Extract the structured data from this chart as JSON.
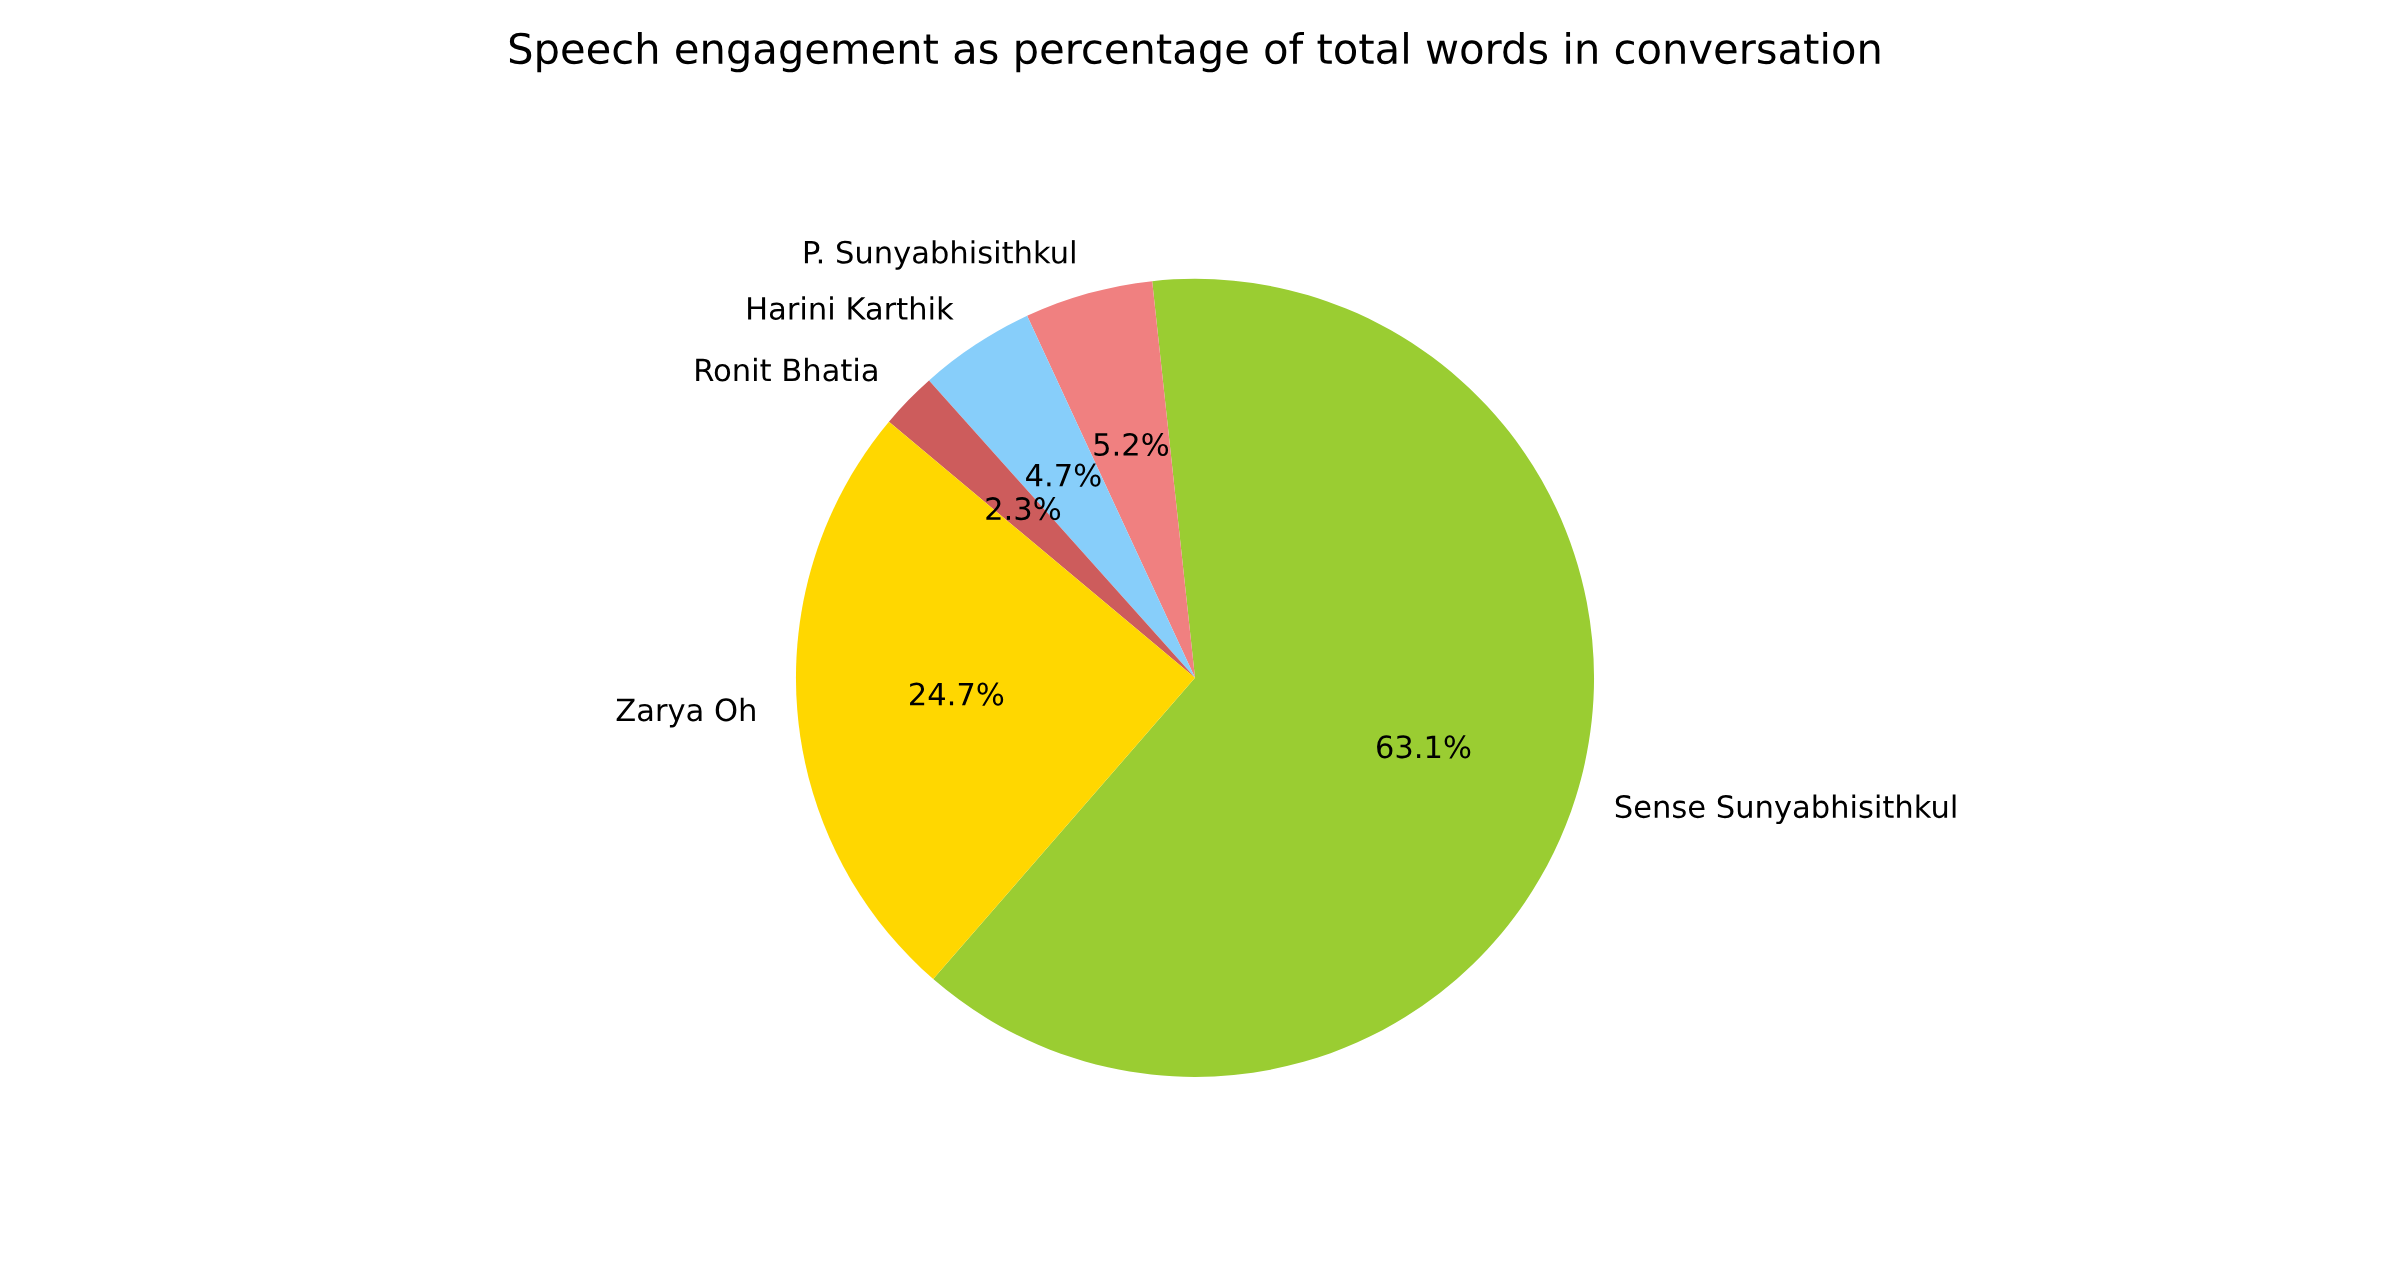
{
  "chart_data": {
    "type": "pie",
    "title": "Speech engagement as percentage of total words in conversation",
    "categories": [
      "Sense Sunyabhisithkul",
      "P. Sunyabhisithkul",
      "Harini Karthik",
      "Ronit Bhatia",
      "Zarya Oh"
    ],
    "values": [
      63.1,
      5.2,
      4.7,
      2.3,
      24.7
    ],
    "value_labels": [
      "63.1%",
      "5.2%",
      "4.7%",
      "2.3%",
      "24.7%"
    ],
    "colors": [
      "#9acd32",
      "#f08080",
      "#87cefa",
      "#cd5c5c",
      "#ffd700"
    ]
  }
}
